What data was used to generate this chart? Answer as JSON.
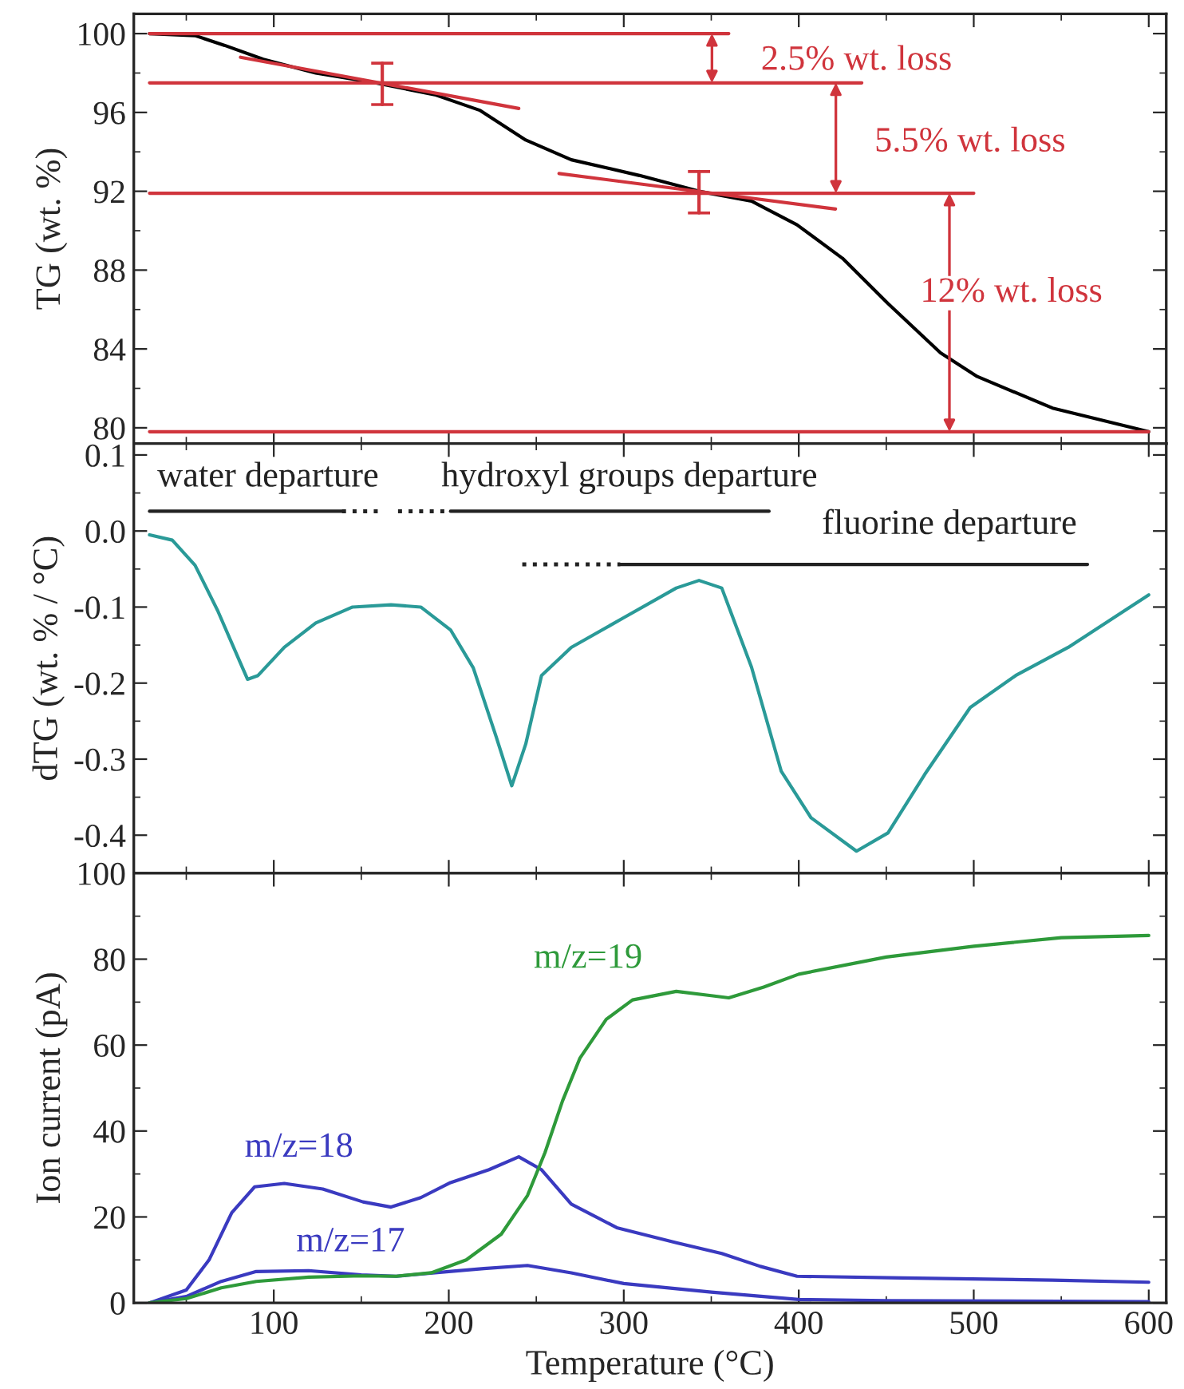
{
  "chart_data": [
    {
      "type": "line",
      "ylabel": "TG (wt. %)",
      "xlim": [
        20,
        610
      ],
      "ylim": [
        79.2,
        101
      ],
      "xticks": [
        100,
        200,
        300,
        400,
        500,
        600
      ],
      "yticks": [
        80,
        84,
        88,
        92,
        96,
        100
      ],
      "tick_labels": "y",
      "series": [
        {
          "color": "#000000",
          "x": [
            29,
            55,
            72,
            94,
            124,
            158,
            192,
            218,
            244,
            270,
            309,
            343,
            373,
            399,
            425,
            451,
            481,
            502,
            545,
            600
          ],
          "values": [
            100,
            99.9,
            99.4,
            98.7,
            98.0,
            97.5,
            96.9,
            96.1,
            94.6,
            93.6,
            92.8,
            92.0,
            91.5,
            90.3,
            88.6,
            86.3,
            83.8,
            82.6,
            81.0,
            79.8
          ]
        },
        {
          "color": "#d0343c",
          "x": [
            29,
            360
          ],
          "values": [
            100,
            100
          ]
        },
        {
          "color": "#d0343c",
          "x": [
            29,
            436
          ],
          "values": [
            97.5,
            97.5
          ]
        },
        {
          "color": "#d0343c",
          "x": [
            29,
            500
          ],
          "values": [
            91.9,
            91.9
          ]
        },
        {
          "color": "#d0343c",
          "x": [
            29,
            600
          ],
          "values": [
            79.8,
            79.8
          ]
        },
        {
          "color": "#d0343c",
          "x": [
            81,
            240
          ],
          "values": [
            98.8,
            96.2
          ]
        },
        {
          "color": "#d0343c",
          "x": [
            263,
            421
          ],
          "values": [
            92.9,
            91.1
          ]
        },
        {
          "color": "#d0343c",
          "x": [
            162,
            162
          ],
          "values": [
            96.4,
            98.5
          ]
        },
        {
          "color": "#d0343c",
          "x": [
            343,
            343
          ],
          "values": [
            90.9,
            93.0
          ]
        }
      ],
      "annotations": [
        "2.5% wt. loss",
        "5.5% wt. loss",
        "12% wt. loss"
      ]
    },
    {
      "type": "line",
      "ylabel": "dTG (wt. % / °C)",
      "xlim": [
        20,
        610
      ],
      "ylim": [
        -0.45,
        0.115
      ],
      "xticks": [
        100,
        200,
        300,
        400,
        500,
        600
      ],
      "yticks": [
        {
          "value": 0.1,
          "label": "0.1"
        },
        {
          "value": 0.0,
          "label": "0.0"
        },
        {
          "value": -0.1,
          "label": "-0.1"
        },
        {
          "value": -0.2,
          "label": "-0.2"
        },
        {
          "value": -0.3,
          "label": "-0.3"
        },
        {
          "value": -0.4,
          "label": "-0.4"
        }
      ],
      "tick_labels": "y",
      "series": [
        {
          "color": "#2a9a98",
          "x": [
            29,
            42,
            55,
            68,
            81,
            85,
            91,
            106,
            124,
            145,
            167,
            184,
            201,
            214,
            227,
            236,
            244,
            253,
            270,
            300,
            330,
            343,
            356,
            373,
            390,
            407,
            433,
            451,
            472,
            498,
            524,
            554,
            600
          ],
          "values": [
            -0.005,
            -0.012,
            -0.045,
            -0.105,
            -0.174,
            -0.195,
            -0.19,
            -0.153,
            -0.121,
            -0.1,
            -0.097,
            -0.1,
            -0.13,
            -0.18,
            -0.27,
            -0.335,
            -0.28,
            -0.19,
            -0.153,
            -0.114,
            -0.075,
            -0.065,
            -0.075,
            -0.179,
            -0.316,
            -0.377,
            -0.421,
            -0.397,
            -0.32,
            -0.232,
            -0.19,
            -0.153,
            -0.084
          ]
        },
        {
          "color": "#222222",
          "line_style": "solid",
          "x": [
            29,
            139
          ],
          "values": [
            0.026,
            0.026
          ]
        },
        {
          "color": "#222222",
          "line_style": "dotted",
          "x": [
            139,
            160
          ],
          "values": [
            0.026,
            0.026
          ]
        },
        {
          "color": "#222222",
          "line_style": "dotted",
          "x": [
            171,
            201
          ],
          "values": [
            0.026,
            0.026
          ]
        },
        {
          "color": "#222222",
          "line_style": "solid",
          "x": [
            201,
            383
          ],
          "values": [
            0.026,
            0.026
          ]
        },
        {
          "color": "#222222",
          "line_style": "dotted",
          "x": [
            242,
            298
          ],
          "values": [
            -0.044,
            -0.044
          ]
        },
        {
          "color": "#222222",
          "line_style": "solid",
          "x": [
            298,
            565
          ],
          "values": [
            -0.044,
            -0.044
          ]
        }
      ],
      "annotations": [
        "water departure",
        "hydroxyl groups departure",
        "fluorine departure"
      ]
    },
    {
      "type": "line",
      "xlabel": "Temperature (°C)",
      "ylabel": "Ion current (pA)",
      "xlim": [
        20,
        610
      ],
      "ylim": [
        0,
        100
      ],
      "xticks": [
        100,
        200,
        300,
        400,
        500,
        600
      ],
      "yticks": [
        0,
        20,
        40,
        60,
        80,
        100
      ],
      "series": [
        {
          "name": "m/z=18",
          "color": "#3a3ac0",
          "x": [
            29,
            50,
            63,
            76,
            89,
            106,
            128,
            151,
            167,
            184,
            201,
            223,
            240,
            253,
            270,
            296,
            330,
            356,
            378,
            399,
            459,
            545,
            600
          ],
          "values": [
            0,
            3,
            10,
            21,
            27,
            27.8,
            26.5,
            23.5,
            22.3,
            24.5,
            28,
            31,
            34,
            31,
            23,
            17.5,
            14,
            11.5,
            8.5,
            6.2,
            5.8,
            5.3,
            4.8
          ]
        },
        {
          "name": "m/z=17",
          "color": "#3a3ac0",
          "x": [
            29,
            50,
            70,
            90,
            120,
            150,
            170,
            200,
            220,
            245,
            270,
            300,
            350,
            400,
            450,
            600
          ],
          "values": [
            0,
            1.5,
            5,
            7.3,
            7.5,
            6.5,
            6.2,
            7.3,
            8,
            8.7,
            7,
            4.5,
            2.5,
            0.8,
            0.5,
            0.3
          ]
        },
        {
          "name": "m/z=19",
          "color": "#2e9a3a",
          "x": [
            29,
            50,
            70,
            90,
            120,
            150,
            170,
            190,
            210,
            230,
            245,
            255,
            265,
            275,
            290,
            305,
            330,
            350,
            360,
            380,
            400,
            450,
            500,
            550,
            600
          ],
          "values": [
            0,
            1,
            3.5,
            5,
            6,
            6.3,
            6.2,
            7,
            10,
            16,
            25,
            35,
            47,
            57,
            66,
            70.5,
            72.5,
            71.5,
            71,
            73.5,
            76.5,
            80.5,
            83,
            85,
            85.5
          ]
        }
      ]
    }
  ]
}
